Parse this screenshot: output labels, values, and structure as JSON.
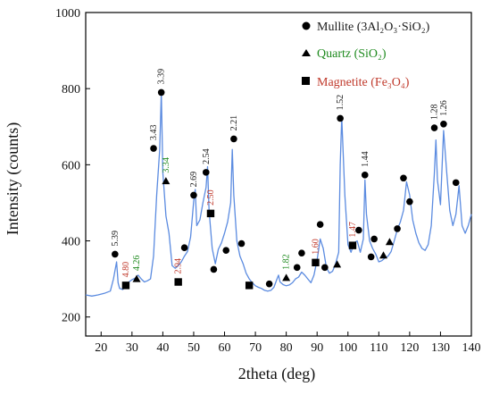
{
  "chart_data": {
    "type": "line",
    "xlabel": "2theta (deg)",
    "ylabel": "Intensity (counts)",
    "xlim": [
      15,
      140
    ],
    "ylim": [
      150,
      1000
    ],
    "xticks": [
      20,
      30,
      40,
      50,
      60,
      70,
      80,
      90,
      100,
      110,
      120,
      130,
      140
    ],
    "yticks": [
      200,
      400,
      600,
      800,
      1000
    ],
    "grid": false,
    "legend_position": "top-right",
    "colors": {
      "pattern": "#5b8be0",
      "mullite_label": "#1a1a1a",
      "quartz_label": "#1e8a1e",
      "magnetite_label": "#c0392b"
    },
    "legend": [
      {
        "marker": "circle",
        "text": "Mullite (3Al₂O₃·SiO₂)",
        "color": "#1a1a1a"
      },
      {
        "marker": "triangle",
        "text": "Quartz (SiO₂)",
        "color": "#1e8a1e"
      },
      {
        "marker": "square",
        "text": "Magnetite (Fe₃O₄)",
        "color": "#c0392b"
      }
    ],
    "series": [
      {
        "x": [
          15,
          17,
          19,
          21,
          23,
          24,
          25,
          25.5,
          26,
          27,
          28,
          29,
          30,
          31,
          32,
          33,
          34,
          35,
          36,
          37,
          38,
          39,
          39.5,
          40,
          41,
          42,
          43,
          44,
          45,
          46,
          47,
          48,
          49,
          50,
          50.5,
          51,
          52,
          53,
          54,
          54.5,
          55,
          56,
          57,
          58,
          59,
          60,
          61,
          62,
          62.5,
          63,
          64,
          65,
          66,
          67,
          68,
          69,
          70,
          71,
          72,
          73,
          74,
          75,
          76,
          77,
          77.5,
          78,
          79,
          80,
          81,
          82,
          83,
          84,
          85,
          86,
          87,
          88,
          89,
          90,
          91,
          92,
          93,
          94,
          95,
          96,
          97,
          97.5,
          98,
          99,
          100,
          101,
          102,
          103,
          104,
          105,
          105.5,
          106,
          107,
          108,
          109,
          110,
          111,
          112,
          113,
          114,
          115,
          116,
          117,
          118,
          119,
          120,
          121,
          122,
          123,
          124,
          125,
          126,
          127,
          128,
          128.5,
          129,
          130,
          131,
          132,
          133,
          134,
          135,
          136,
          137,
          138,
          139,
          140
        ],
        "y": [
          258,
          255,
          258,
          262,
          268,
          300,
          345,
          290,
          275,
          272,
          280,
          292,
          298,
          302,
          310,
          300,
          292,
          295,
          300,
          360,
          520,
          640,
          790,
          580,
          465,
          420,
          335,
          328,
          335,
          345,
          360,
          372,
          410,
          505,
          535,
          440,
          455,
          500,
          540,
          595,
          480,
          380,
          340,
          378,
          395,
          420,
          450,
          500,
          640,
          520,
          400,
          360,
          340,
          315,
          300,
          290,
          282,
          278,
          275,
          270,
          268,
          270,
          278,
          300,
          310,
          292,
          285,
          282,
          284,
          290,
          300,
          305,
          318,
          310,
          300,
          290,
          310,
          350,
          405,
          380,
          330,
          315,
          320,
          340,
          370,
          600,
          725,
          520,
          390,
          370,
          395,
          400,
          370,
          405,
          560,
          470,
          400,
          380,
          365,
          345,
          348,
          355,
          360,
          372,
          400,
          430,
          450,
          480,
          555,
          520,
          455,
          420,
          395,
          380,
          375,
          390,
          440,
          575,
          665,
          560,
          495,
          690,
          580,
          480,
          440,
          470,
          545,
          440,
          420,
          440,
          470
        ]
      }
    ],
    "peaks": [
      {
        "phase": "mullite",
        "x": 24.5,
        "y": 365,
        "label": "5.39"
      },
      {
        "phase": "mullite",
        "x": 37.0,
        "y": 643,
        "label": "3.43"
      },
      {
        "phase": "mullite",
        "x": 39.5,
        "y": 790,
        "label": "3.39"
      },
      {
        "phase": "mullite",
        "x": 47.0,
        "y": 382,
        "label": ""
      },
      {
        "phase": "mullite",
        "x": 50.0,
        "y": 520,
        "label": "2.69"
      },
      {
        "phase": "mullite",
        "x": 54.0,
        "y": 580,
        "label": "2.54"
      },
      {
        "phase": "mullite",
        "x": 56.5,
        "y": 325,
        "label": ""
      },
      {
        "phase": "mullite",
        "x": 60.5,
        "y": 375,
        "label": ""
      },
      {
        "phase": "mullite",
        "x": 63.0,
        "y": 668,
        "label": "2.21"
      },
      {
        "phase": "mullite",
        "x": 65.5,
        "y": 393,
        "label": ""
      },
      {
        "phase": "mullite",
        "x": 74.5,
        "y": 287,
        "label": ""
      },
      {
        "phase": "mullite",
        "x": 83.5,
        "y": 330,
        "label": ""
      },
      {
        "phase": "mullite",
        "x": 85.0,
        "y": 368,
        "label": ""
      },
      {
        "phase": "mullite",
        "x": 91.0,
        "y": 443,
        "label": ""
      },
      {
        "phase": "mullite",
        "x": 92.5,
        "y": 330,
        "label": ""
      },
      {
        "phase": "mullite",
        "x": 97.5,
        "y": 722,
        "label": "1.52"
      },
      {
        "phase": "mullite",
        "x": 103.5,
        "y": 428,
        "label": ""
      },
      {
        "phase": "mullite",
        "x": 105.5,
        "y": 573,
        "label": "1.44"
      },
      {
        "phase": "mullite",
        "x": 107.5,
        "y": 358,
        "label": ""
      },
      {
        "phase": "mullite",
        "x": 108.5,
        "y": 405,
        "label": ""
      },
      {
        "phase": "mullite",
        "x": 116.0,
        "y": 432,
        "label": ""
      },
      {
        "phase": "mullite",
        "x": 118.0,
        "y": 565,
        "label": ""
      },
      {
        "phase": "mullite",
        "x": 120.0,
        "y": 503,
        "label": ""
      },
      {
        "phase": "mullite",
        "x": 128.0,
        "y": 697,
        "label": "1.28"
      },
      {
        "phase": "mullite",
        "x": 131.0,
        "y": 707,
        "label": "1.26"
      },
      {
        "phase": "mullite",
        "x": 135.0,
        "y": 553,
        "label": ""
      },
      {
        "phase": "quartz",
        "x": 31.5,
        "y": 300,
        "label": "4.26"
      },
      {
        "phase": "quartz",
        "x": 41.0,
        "y": 557,
        "label": "3.34"
      },
      {
        "phase": "quartz",
        "x": 80.0,
        "y": 303,
        "label": "1.82"
      },
      {
        "phase": "quartz",
        "x": 96.5,
        "y": 338,
        "label": ""
      },
      {
        "phase": "quartz",
        "x": 111.5,
        "y": 362,
        "label": ""
      },
      {
        "phase": "quartz",
        "x": 113.5,
        "y": 397,
        "label": ""
      },
      {
        "phase": "magnetite",
        "x": 28.0,
        "y": 283,
        "label": "4.80"
      },
      {
        "phase": "magnetite",
        "x": 45.0,
        "y": 292,
        "label": "2.94"
      },
      {
        "phase": "magnetite",
        "x": 55.5,
        "y": 472,
        "label": "2.50"
      },
      {
        "phase": "magnetite",
        "x": 68.0,
        "y": 283,
        "label": ""
      },
      {
        "phase": "magnetite",
        "x": 89.5,
        "y": 343,
        "label": "1.60"
      },
      {
        "phase": "magnetite",
        "x": 101.5,
        "y": 388,
        "label": "1.47"
      }
    ]
  }
}
